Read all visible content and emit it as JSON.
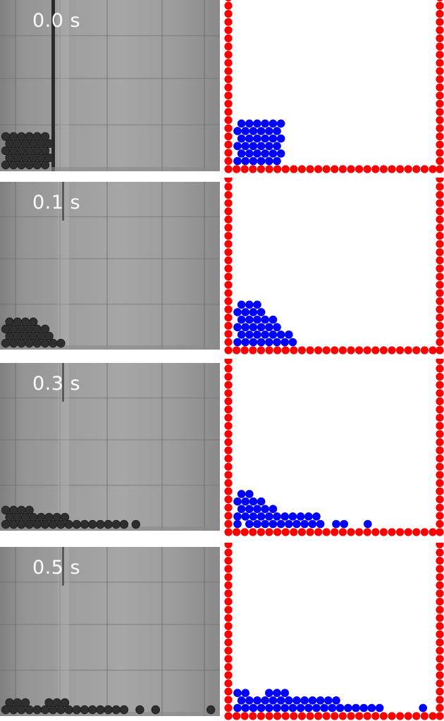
{
  "colors": {
    "wall_particle": "#ff0000",
    "fluid_particle": "#0000ff",
    "photo_ball": "#2e2e2e"
  },
  "panels": [
    {
      "time_label": "0.0 s"
    },
    {
      "time_label": "0.1 s"
    },
    {
      "time_label": "0.3 s"
    },
    {
      "time_label": "0.5 s"
    }
  ]
}
